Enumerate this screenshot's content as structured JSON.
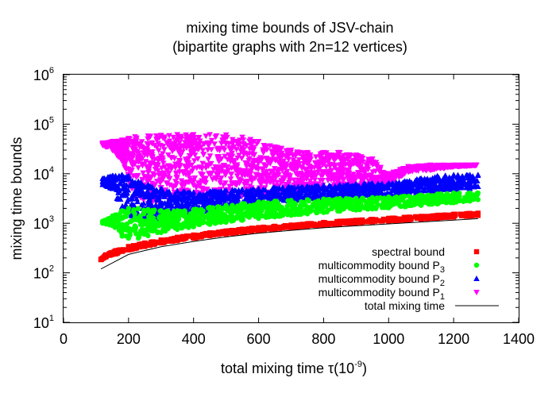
{
  "chart_data": {
    "type": "scatter",
    "title": [
      "mixing time bounds of JSV-chain",
      "(bipartite graphs with 2n=12 vertices)"
    ],
    "xlabel": {
      "text": "total mixing time τ(10",
      "sup": "-9",
      "suffix": ")"
    },
    "ylabel": "mixing time bounds",
    "xlim": [
      0,
      1400
    ],
    "ylim": [
      10,
      1000000
    ],
    "yscale": "log",
    "x_ticks": [
      "0",
      "200",
      "400",
      "600",
      "800",
      "1000",
      "1200",
      "1400"
    ],
    "y_ticks": [
      {
        "base": "10",
        "exp": "1"
      },
      {
        "base": "10",
        "exp": "2"
      },
      {
        "base": "10",
        "exp": "3"
      },
      {
        "base": "10",
        "exp": "4"
      },
      {
        "base": "10",
        "exp": "5"
      },
      {
        "base": "10",
        "exp": "6"
      }
    ],
    "grid": false,
    "legend_position": "bottom-right",
    "series": [
      {
        "name": "multicommodity bound P",
        "sub": "1",
        "marker": "triangle-down",
        "color": "#ff00ff",
        "x": [
          120,
          150,
          180,
          200,
          220,
          260,
          300,
          350,
          400,
          450,
          500,
          550,
          600,
          650,
          700,
          750,
          800,
          850,
          900,
          950,
          1000,
          1060,
          1130,
          1170,
          1200,
          1240,
          1270
        ],
        "lower": [
          38000,
          30000,
          18000,
          7000,
          3500,
          2500,
          2500,
          3000,
          3200,
          3300,
          3500,
          3600,
          3800,
          4000,
          4300,
          4500,
          4700,
          5000,
          5200,
          5500,
          6000,
          11000,
          12000,
          13000,
          14000,
          14500,
          15000
        ],
        "upper": [
          42000,
          45000,
          48000,
          52000,
          56000,
          58000,
          60000,
          62000,
          62000,
          62000,
          61000,
          55000,
          45000,
          35000,
          30000,
          27000,
          27000,
          27000,
          24000,
          20000,
          10000,
          14000,
          15000,
          15000,
          15000,
          15000,
          15000
        ]
      },
      {
        "name": "multicommodity bound P",
        "sub": "2",
        "marker": "triangle",
        "color": "#0000ff",
        "x": [
          120,
          150,
          180,
          200,
          230,
          260,
          300,
          350,
          400,
          450,
          500,
          550,
          600,
          650,
          700,
          750,
          800,
          850,
          900,
          950,
          1000,
          1050,
          1100,
          1150,
          1200,
          1250,
          1275
        ],
        "lower": [
          6000,
          5000,
          1800,
          1500,
          1200,
          1100,
          1200,
          1400,
          1600,
          1800,
          2000,
          2200,
          2400,
          2600,
          2800,
          3000,
          3200,
          3300,
          3400,
          3500,
          3600,
          3800,
          4200,
          4500,
          4800,
          5000,
          5500
        ],
        "upper": [
          8000,
          9000,
          9500,
          9000,
          7000,
          6000,
          5000,
          4500,
          4200,
          4400,
          4600,
          4800,
          5000,
          5200,
          5400,
          5600,
          5800,
          6000,
          6200,
          6400,
          6500,
          7000,
          8000,
          9000,
          9500,
          9500,
          9500
        ]
      },
      {
        "name": "multicommodity bound P",
        "sub": "3",
        "marker": "circle",
        "color": "#00ff00",
        "x": [
          120,
          150,
          180,
          200,
          230,
          260,
          300,
          350,
          400,
          450,
          500,
          550,
          600,
          650,
          700,
          750,
          800,
          850,
          900,
          950,
          1000,
          1050,
          1100,
          1150,
          1200,
          1250,
          1275
        ],
        "lower": [
          1000,
          900,
          550,
          500,
          500,
          560,
          650,
          750,
          850,
          950,
          1050,
          1150,
          1250,
          1350,
          1450,
          1550,
          1650,
          1750,
          1850,
          1950,
          2050,
          2150,
          2300,
          2450,
          2600,
          2800,
          3000
        ],
        "upper": [
          1100,
          1400,
          1800,
          2000,
          2000,
          1900,
          1800,
          1800,
          1900,
          2100,
          2300,
          2500,
          2700,
          2800,
          2900,
          3000,
          3100,
          3150,
          3200,
          3300,
          3400,
          3500,
          3700,
          3900,
          4100,
          4100,
          4100
        ]
      },
      {
        "name": "spectral bound",
        "marker": "square",
        "color": "#ff0000",
        "x": [
          115,
          130,
          160,
          200,
          250,
          300,
          350,
          400,
          450,
          500,
          550,
          600,
          650,
          700,
          750,
          800,
          850,
          900,
          950,
          1000,
          1050,
          1100,
          1150,
          1200,
          1250,
          1275
        ],
        "lower": [
          185,
          210,
          240,
          290,
          340,
          400,
          450,
          500,
          560,
          610,
          660,
          710,
          760,
          810,
          860,
          910,
          960,
          1010,
          1060,
          1110,
          1160,
          1210,
          1270,
          1340,
          1400,
          1440
        ],
        "upper": [
          185,
          230,
          280,
          340,
          400,
          460,
          520,
          580,
          640,
          700,
          760,
          820,
          870,
          920,
          980,
          1040,
          1100,
          1150,
          1200,
          1260,
          1320,
          1380,
          1450,
          1520,
          1580,
          1600
        ]
      },
      {
        "name": "total mixing time",
        "marker": "line",
        "color": "#000000",
        "x": [
          115,
          200,
          300,
          400,
          500,
          600,
          700,
          800,
          900,
          1000,
          1100,
          1200,
          1275
        ],
        "y": [
          120,
          235,
          335,
          430,
          530,
          630,
          720,
          810,
          890,
          970,
          1060,
          1160,
          1240
        ]
      }
    ]
  }
}
